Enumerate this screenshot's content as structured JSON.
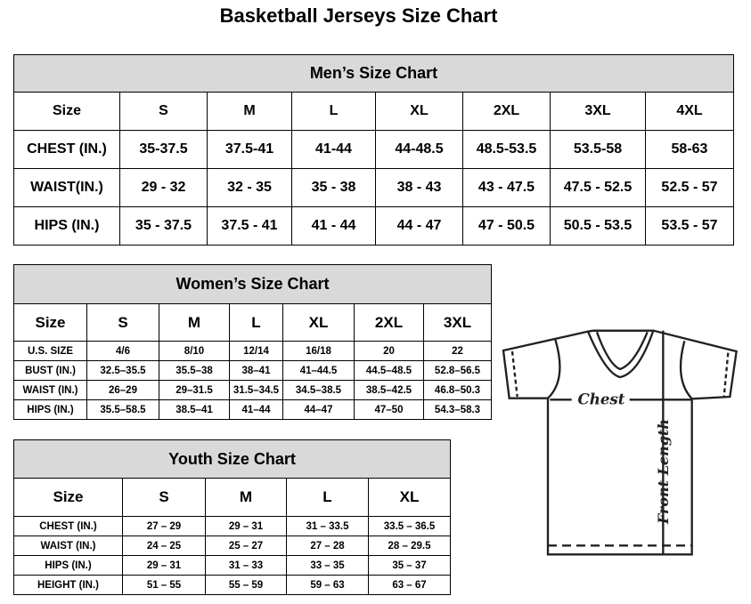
{
  "title": "Basketball Jerseys Size Chart",
  "mens": {
    "caption": "Men’s Size Chart",
    "header": [
      "Size",
      "S",
      "M",
      "L",
      "XL",
      "2XL",
      "3XL",
      "4XL"
    ],
    "rows": [
      [
        "CHEST (IN.)",
        "35-37.5",
        "37.5-41",
        "41-44",
        "44-48.5",
        "48.5-53.5",
        "53.5-58",
        "58-63"
      ],
      [
        "WAIST(IN.)",
        "29 - 32",
        "32 - 35",
        "35 - 38",
        "38 - 43",
        "43 - 47.5",
        "47.5 - 52.5",
        "52.5 - 57"
      ],
      [
        "HIPS (IN.)",
        "35 - 37.5",
        "37.5 - 41",
        "41 - 44",
        "44 - 47",
        "47 - 50.5",
        "50.5 - 53.5",
        "53.5 - 57"
      ]
    ]
  },
  "womens": {
    "caption": "Women’s Size Chart",
    "header": [
      "Size",
      "S",
      "M",
      "L",
      "XL",
      "2XL",
      "3XL"
    ],
    "rows": [
      [
        "U.S.  SIZE",
        "4/6",
        "8/10",
        "12/14",
        "16/18",
        "20",
        "22"
      ],
      [
        "BUST  (IN.)",
        "32.5–35.5",
        "35.5–38",
        "38–41",
        "41–44.5",
        "44.5–48.5",
        "52.8–56.5"
      ],
      [
        "WAIST  (IN.)",
        "26–29",
        "29–31.5",
        "31.5–34.5",
        "34.5–38.5",
        "38.5–42.5",
        "46.8–50.3"
      ],
      [
        "HIPS  (IN.)",
        "35.5–58.5",
        "38.5–41",
        "41–44",
        "44–47",
        "47–50",
        "54.3–58.3"
      ]
    ]
  },
  "youth": {
    "caption": "Youth Size Chart",
    "header": [
      "Size",
      "S",
      "M",
      "L",
      "XL"
    ],
    "rows": [
      [
        "CHEST  (IN.)",
        "27  –  29",
        "29  –  31",
        "31  –  33.5",
        "33.5  –  36.5"
      ],
      [
        "WAIST  (IN.)",
        "24  –  25",
        "25  –  27",
        "27  –  28",
        "28  –  29.5"
      ],
      [
        "HIPS  (IN.)",
        "29  –  31",
        "31  –  33",
        "33  –  35",
        "35  –  37"
      ],
      [
        "HEIGHT  (IN.)",
        "51  –  55",
        "55  –  59",
        "59  –  63",
        "63  –  67"
      ]
    ]
  },
  "diagram": {
    "chest_label": "Chest",
    "length_label": "Front Length",
    "line_color": "#231f20"
  }
}
